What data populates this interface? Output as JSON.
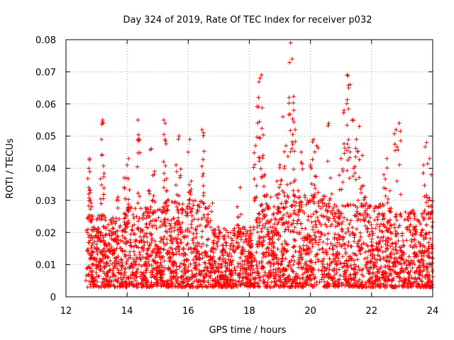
{
  "chart_data": {
    "type": "scatter",
    "title": "Day 324 of 2019, Rate Of TEC Index for receiver p032",
    "xlabel": "GPS time / hours",
    "ylabel": "ROTI / TECUs",
    "xlim": [
      12,
      24
    ],
    "ylim": [
      0,
      0.08
    ],
    "grid": true,
    "marker": "plus",
    "color": "#ff0000",
    "x_ticks": [
      "12",
      "14",
      "16",
      "18",
      "20",
      "22",
      "24"
    ],
    "y_ticks": [
      "0",
      "0.01",
      "0.02",
      "0.03",
      "0.04",
      "0.05",
      "0.06",
      "0.07",
      "0.08"
    ],
    "series": [
      {
        "name": "ROTI",
        "points": [
          [
            12.7,
            0.009
          ],
          [
            12.72,
            0.021
          ],
          [
            12.75,
            0.034
          ],
          [
            12.75,
            0.04
          ],
          [
            12.77,
            0.043
          ],
          [
            12.8,
            0.013
          ],
          [
            12.85,
            0.028
          ],
          [
            12.9,
            0.006
          ],
          [
            13.0,
            0.019
          ],
          [
            13.1,
            0.011
          ],
          [
            13.15,
            0.029
          ],
          [
            13.2,
            0.055
          ],
          [
            13.22,
            0.054
          ],
          [
            13.18,
            0.044
          ],
          [
            13.3,
            0.016
          ],
          [
            13.4,
            0.008
          ],
          [
            13.5,
            0.024
          ],
          [
            13.6,
            0.012
          ],
          [
            13.7,
            0.031
          ],
          [
            13.8,
            0.006
          ],
          [
            13.9,
            0.037
          ],
          [
            14.0,
            0.041
          ],
          [
            14.05,
            0.043
          ],
          [
            14.1,
            0.016
          ],
          [
            14.2,
            0.009
          ],
          [
            14.35,
            0.055
          ],
          [
            14.4,
            0.049
          ],
          [
            14.45,
            0.021
          ],
          [
            14.6,
            0.012
          ],
          [
            14.7,
            0.033
          ],
          [
            14.8,
            0.046
          ],
          [
            14.9,
            0.039
          ],
          [
            15.0,
            0.014
          ],
          [
            15.1,
            0.008
          ],
          [
            15.2,
            0.055
          ],
          [
            15.25,
            0.054
          ],
          [
            15.3,
            0.033
          ],
          [
            15.4,
            0.019
          ],
          [
            15.5,
            0.011
          ],
          [
            15.6,
            0.041
          ],
          [
            15.7,
            0.05
          ],
          [
            15.8,
            0.026
          ],
          [
            15.9,
            0.009
          ],
          [
            16.0,
            0.045
          ],
          [
            16.05,
            0.049
          ],
          [
            16.1,
            0.036
          ],
          [
            16.2,
            0.015
          ],
          [
            16.3,
            0.027
          ],
          [
            16.45,
            0.052
          ],
          [
            16.5,
            0.051
          ],
          [
            16.6,
            0.022
          ],
          [
            16.8,
            0.012
          ],
          [
            17.0,
            0.008
          ],
          [
            17.2,
            0.019
          ],
          [
            17.4,
            0.011
          ],
          [
            17.6,
            0.028
          ],
          [
            17.7,
            0.034
          ],
          [
            17.9,
            0.009
          ],
          [
            18.0,
            0.016
          ],
          [
            18.1,
            0.013
          ],
          [
            18.2,
            0.047
          ],
          [
            18.3,
            0.062
          ],
          [
            18.35,
            0.068
          ],
          [
            18.4,
            0.069
          ],
          [
            18.45,
            0.044
          ],
          [
            18.5,
            0.038
          ],
          [
            18.6,
            0.021
          ],
          [
            18.7,
            0.031
          ],
          [
            18.8,
            0.014
          ],
          [
            18.9,
            0.036
          ],
          [
            19.0,
            0.041
          ],
          [
            19.1,
            0.056
          ],
          [
            19.2,
            0.047
          ],
          [
            19.3,
            0.062
          ],
          [
            19.35,
            0.079
          ],
          [
            19.4,
            0.074
          ],
          [
            19.45,
            0.058
          ],
          [
            19.5,
            0.052
          ],
          [
            19.6,
            0.033
          ],
          [
            19.7,
            0.045
          ],
          [
            19.8,
            0.026
          ],
          [
            19.9,
            0.018
          ],
          [
            20.0,
            0.041
          ],
          [
            20.1,
            0.049
          ],
          [
            20.2,
            0.047
          ],
          [
            20.3,
            0.023
          ],
          [
            20.4,
            0.011
          ],
          [
            20.6,
            0.054
          ],
          [
            20.7,
            0.032
          ],
          [
            20.8,
            0.016
          ],
          [
            20.9,
            0.027
          ],
          [
            21.0,
            0.043
          ],
          [
            21.1,
            0.058
          ],
          [
            21.2,
            0.069
          ],
          [
            21.25,
            0.065
          ],
          [
            21.3,
            0.066
          ],
          [
            21.4,
            0.055
          ],
          [
            21.5,
            0.049
          ],
          [
            21.6,
            0.053
          ],
          [
            21.7,
            0.044
          ],
          [
            21.8,
            0.031
          ],
          [
            22.0,
            0.016
          ],
          [
            22.2,
            0.024
          ],
          [
            22.4,
            0.038
          ],
          [
            22.5,
            0.043
          ],
          [
            22.6,
            0.033
          ],
          [
            22.8,
            0.052
          ],
          [
            22.9,
            0.054
          ],
          [
            23.0,
            0.019
          ],
          [
            23.2,
            0.011
          ],
          [
            23.4,
            0.026
          ],
          [
            23.6,
            0.014
          ],
          [
            23.7,
            0.041
          ],
          [
            23.8,
            0.048
          ],
          [
            23.9,
            0.043
          ],
          [
            23.95,
            0.038
          ],
          [
            24.0,
            0.012
          ]
        ]
      }
    ],
    "dense_band": {
      "x_range": [
        12.7,
        24.0
      ],
      "y_range": [
        0.003,
        0.03
      ],
      "segments": [
        {
          "x0": 12.7,
          "x1": 14.0,
          "y_hi": 0.026
        },
        {
          "x0": 14.0,
          "x1": 15.0,
          "y_hi": 0.028
        },
        {
          "x0": 15.0,
          "x1": 16.8,
          "y_hi": 0.03
        },
        {
          "x0": 16.8,
          "x1": 18.1,
          "y_hi": 0.022
        },
        {
          "x0": 18.1,
          "x1": 20.5,
          "y_hi": 0.032
        },
        {
          "x0": 20.5,
          "x1": 22.5,
          "y_hi": 0.029
        },
        {
          "x0": 22.5,
          "x1": 24.0,
          "y_hi": 0.027
        }
      ]
    }
  }
}
